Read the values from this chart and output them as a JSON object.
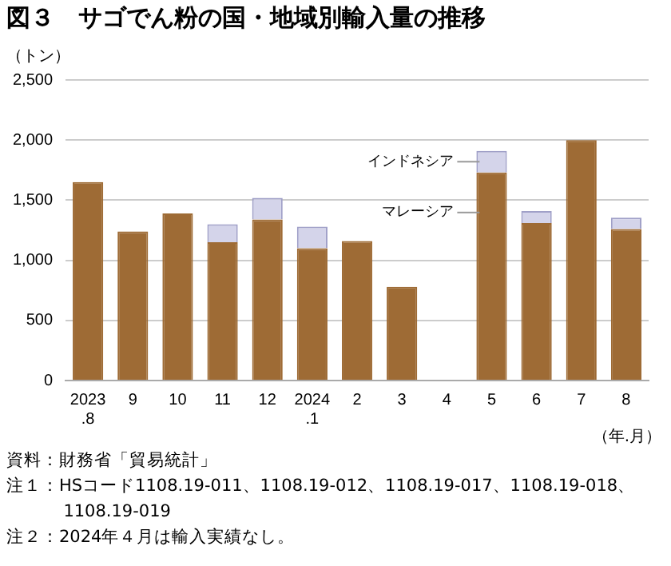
{
  "chart_data": {
    "type": "bar",
    "title": "図３　サゴでん粉の国・地域別輸入量の推移",
    "ylabel": "（トン）",
    "xlabel": "（年.月）",
    "categories": [
      "2023\n.8",
      "9",
      "10",
      "11",
      "12",
      "2024\n.1",
      "2",
      "3",
      "4",
      "5",
      "6",
      "7",
      "8"
    ],
    "stacked": true,
    "grid": "y",
    "legend": false,
    "ylim": [
      0,
      2500
    ],
    "yticks": [
      {
        "value": 0,
        "label": "0"
      },
      {
        "value": 500,
        "label": "500"
      },
      {
        "value": 1000,
        "label": "1,000"
      },
      {
        "value": 1500,
        "label": "1,500"
      },
      {
        "value": 2000,
        "label": "2,000"
      },
      {
        "value": 2500,
        "label": "2,500"
      }
    ],
    "series": [
      {
        "name": "マレーシア",
        "color": "#9e6b35",
        "values": [
          1650,
          1240,
          1390,
          1150,
          1340,
          1100,
          1160,
          780,
          null,
          1730,
          1310,
          2000,
          1260
        ]
      },
      {
        "name": "インドネシア",
        "color": "#d4d4ea",
        "values": [
          null,
          null,
          null,
          150,
          180,
          180,
          null,
          null,
          null,
          180,
          100,
          null,
          95
        ]
      }
    ],
    "annotations": [
      "資料：財務省「貿易統計」",
      "注１：HSコード1108.19-011、1108.19-012、1108.19-017、1108.19-018、1108.19-019",
      "注２：2024年４月は輸入実績なし。"
    ]
  }
}
